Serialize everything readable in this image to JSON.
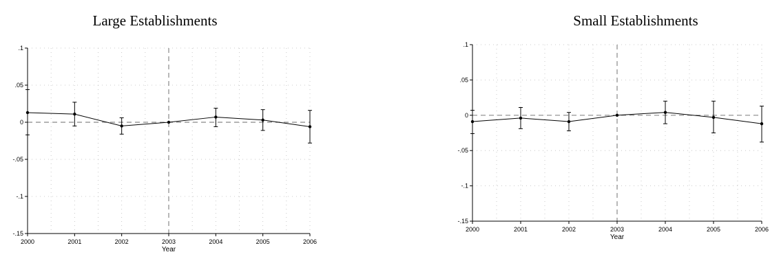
{
  "chart_data": [
    {
      "type": "line",
      "title": "Large Establishments",
      "xlabel": "Year",
      "ylabel": "",
      "x": [
        2000,
        2001,
        2002,
        2003,
        2004,
        2005,
        2006
      ],
      "x_tick_labels": [
        "2000",
        "2001",
        "2002",
        "2003",
        "2004",
        "2005",
        "2006"
      ],
      "y_ticks": [
        0.1,
        0.05,
        0,
        -0.05,
        -0.1,
        -0.15
      ],
      "y_tick_labels": [
        ".1",
        ".05",
        "0",
        "-.05",
        "-.1",
        "-.15"
      ],
      "ylim": [
        -0.15,
        0.1
      ],
      "xlim": [
        2000,
        2006
      ],
      "series": [
        {
          "values": [
            0.013,
            0.011,
            -0.005,
            0.0,
            0.007,
            0.003,
            -0.006
          ],
          "ci_upper": [
            0.044,
            0.027,
            0.006,
            0.0,
            0.019,
            0.017,
            0.016
          ],
          "ci_lower": [
            -0.017,
            -0.005,
            -0.016,
            0.0,
            -0.006,
            -0.011,
            -0.028
          ]
        }
      ],
      "reference_lines": {
        "horizontal": 0,
        "vertical": 2003
      },
      "grid": true,
      "colors": {
        "line": "#000000",
        "reference": "#888888",
        "grid": "#bbbbbb"
      }
    },
    {
      "type": "line",
      "title": "Small Establishments",
      "xlabel": "Year",
      "ylabel": "",
      "x": [
        2000,
        2001,
        2002,
        2003,
        2004,
        2005,
        2006
      ],
      "x_tick_labels": [
        "2000",
        "2001",
        "2002",
        "2003",
        "2004",
        "2005",
        "2006"
      ],
      "y_ticks": [
        0.1,
        0.05,
        0,
        -0.05,
        -0.1,
        -0.15
      ],
      "y_tick_labels": [
        ".1",
        ".05",
        "0",
        "-.05",
        "-.1",
        "-.15"
      ],
      "ylim": [
        -0.15,
        0.1
      ],
      "xlim": [
        2000,
        2006
      ],
      "series": [
        {
          "values": [
            -0.009,
            -0.004,
            -0.009,
            0.0,
            0.004,
            -0.003,
            -0.012
          ],
          "ci_upper": [
            0.007,
            0.011,
            0.004,
            0.0,
            0.02,
            0.02,
            0.013
          ],
          "ci_lower": [
            -0.026,
            -0.019,
            -0.022,
            0.0,
            -0.012,
            -0.025,
            -0.038
          ]
        }
      ],
      "reference_lines": {
        "horizontal": 0,
        "vertical": 2003
      },
      "grid": true,
      "colors": {
        "line": "#000000",
        "reference": "#888888",
        "grid": "#bbbbbb"
      }
    }
  ]
}
